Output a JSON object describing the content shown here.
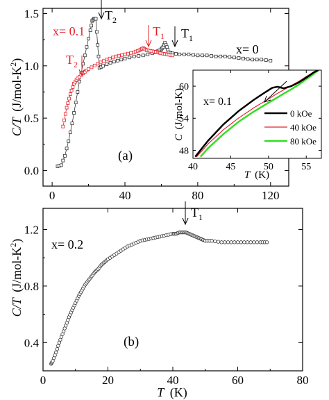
{
  "chart_data": [
    {
      "panel_label": "(a)",
      "type": "scatter",
      "xlabel": "T",
      "xunit": "(K)",
      "ylabel": "C/T",
      "yunit": "(J/mol-K",
      "yunit_sup": "2",
      "yunit_close": ")",
      "xlim": [
        -5,
        130
      ],
      "ylim": [
        -0.15,
        1.55
      ],
      "xticks": [
        "0",
        "40",
        "80",
        "120"
      ],
      "xtick_values": [
        0,
        40,
        80,
        120
      ],
      "yticks": [
        "0.0",
        "0.5",
        "1.0",
        "1.5"
      ],
      "ytick_values": [
        0.0,
        0.5,
        1.0,
        1.5
      ],
      "annotations": {
        "x01": {
          "text": "x= 0.1",
          "color": "#e8202a"
        },
        "x0": {
          "text": "x= 0"
        },
        "T2_black": {
          "main": "T",
          "sub": "2",
          "x": 23
        },
        "T1_black": {
          "main": "T",
          "sub": "1",
          "x": 63
        },
        "T2_red": {
          "main": "T",
          "sub": "2",
          "x": 13
        },
        "T1_red": {
          "main": "T",
          "sub": "1",
          "x": 50
        }
      },
      "series": [
        {
          "name": "x= 0",
          "color": "#333333",
          "marker": "open-square",
          "points": [
            [
              3,
              0.04
            ],
            [
              5,
              0.05
            ],
            [
              7,
              0.14
            ],
            [
              9,
              0.28
            ],
            [
              11,
              0.45
            ],
            [
              13,
              0.65
            ],
            [
              15,
              0.85
            ],
            [
              17,
              1.02
            ],
            [
              19,
              1.18
            ],
            [
              21,
              1.34
            ],
            [
              22,
              1.43
            ],
            [
              23,
              1.45
            ],
            [
              24,
              1.45
            ],
            [
              25,
              1.2
            ],
            [
              26,
              0.98
            ],
            [
              28,
              1.0
            ],
            [
              32,
              1.03
            ],
            [
              36,
              1.05
            ],
            [
              40,
              1.07
            ],
            [
              45,
              1.09
            ],
            [
              50,
              1.1
            ],
            [
              55,
              1.12
            ],
            [
              58,
              1.14
            ],
            [
              60,
              1.16
            ],
            [
              61,
              1.18
            ],
            [
              62,
              1.22
            ],
            [
              63,
              1.18
            ],
            [
              64,
              1.13
            ],
            [
              66,
              1.12
            ],
            [
              70,
              1.11
            ],
            [
              75,
              1.11
            ],
            [
              80,
              1.1
            ],
            [
              85,
              1.1
            ],
            [
              90,
              1.09
            ],
            [
              95,
              1.09
            ],
            [
              100,
              1.08
            ],
            [
              105,
              1.07
            ],
            [
              110,
              1.06
            ],
            [
              115,
              1.06
            ],
            [
              120,
              1.05
            ]
          ]
        },
        {
          "name": "x= 0.1",
          "color": "#e8202a",
          "marker": "open-square",
          "points": [
            [
              6,
              0.42
            ],
            [
              8,
              0.6
            ],
            [
              10,
              0.73
            ],
            [
              12,
              0.83
            ],
            [
              14,
              0.88
            ],
            [
              17,
              0.93
            ],
            [
              20,
              0.97
            ],
            [
              25,
              1.02
            ],
            [
              30,
              1.06
            ],
            [
              35,
              1.09
            ],
            [
              40,
              1.11
            ],
            [
              45,
              1.13
            ],
            [
              48,
              1.15
            ],
            [
              50,
              1.17
            ],
            [
              52,
              1.15
            ],
            [
              55,
              1.14
            ],
            [
              58,
              1.13
            ],
            [
              60,
              1.12
            ],
            [
              63,
              1.11
            ],
            [
              66,
              1.1
            ]
          ]
        }
      ],
      "inset": {
        "type": "line",
        "xlabel": "T",
        "xunit": "(K)",
        "ylabel": "C",
        "yunit": "(J/mol-K)",
        "xlim": [
          40,
          57
        ],
        "ylim": [
          46.5,
          63
        ],
        "xticks": [
          "40",
          "45",
          "50",
          "55"
        ],
        "xtick_values": [
          40,
          45,
          50,
          55
        ],
        "yticks": [
          "48",
          "54",
          "60"
        ],
        "ytick_values": [
          48,
          54,
          60
        ],
        "label": "x= 0.1",
        "legend_position": "bottom-right",
        "series": [
          {
            "name": "0 kOe",
            "color": "#000000",
            "width": 2.5,
            "points": [
              [
                40.3,
                46.8
              ],
              [
                42,
                49.8
              ],
              [
                44,
                52.8
              ],
              [
                46,
                55.3
              ],
              [
                48,
                57.4
              ],
              [
                49.5,
                58.8
              ],
              [
                50.5,
                59.7
              ],
              [
                51.2,
                59.9
              ],
              [
                52,
                59.6
              ],
              [
                53,
                60.0
              ],
              [
                54,
                60.7
              ],
              [
                55,
                61.6
              ],
              [
                56,
                62.6
              ],
              [
                56.6,
                63.0
              ]
            ]
          },
          {
            "name": "40 kOe",
            "color": "#e8202a",
            "width": 1.2,
            "points": [
              [
                40.5,
                46.8
              ],
              [
                42,
                49.2
              ],
              [
                44,
                51.8
              ],
              [
                46,
                54.0
              ],
              [
                48,
                55.9
              ],
              [
                50,
                57.6
              ],
              [
                51,
                58.5
              ],
              [
                52,
                59.3
              ],
              [
                53,
                60.1
              ],
              [
                54,
                60.9
              ],
              [
                55,
                61.8
              ],
              [
                56,
                62.6
              ],
              [
                56.6,
                63.0
              ]
            ]
          },
          {
            "name": "80 kOe",
            "color": "#33dd22",
            "width": 2.5,
            "points": [
              [
                41,
                46.8
              ],
              [
                42,
                48.4
              ],
              [
                44,
                51.0
              ],
              [
                46,
                53.3
              ],
              [
                48,
                55.2
              ],
              [
                50,
                56.9
              ],
              [
                52,
                58.6
              ],
              [
                53,
                59.4
              ],
              [
                54,
                60.3
              ],
              [
                55,
                61.3
              ],
              [
                56,
                62.3
              ],
              [
                56.6,
                63.0
              ]
            ]
          }
        ]
      }
    },
    {
      "panel_label": "(b)",
      "type": "scatter",
      "xlabel": "T",
      "xunit": "(K)",
      "ylabel": "C/T",
      "yunit": "(J/mol-K",
      "yunit_sup": "2",
      "yunit_close": ")",
      "xlim": [
        0,
        80
      ],
      "ylim": [
        0.2,
        1.35
      ],
      "xticks": [
        "0",
        "20",
        "40",
        "60",
        "80"
      ],
      "xtick_values": [
        0,
        20,
        40,
        60,
        80
      ],
      "yticks": [
        "0.4",
        "0.8",
        "1.2"
      ],
      "ytick_values": [
        0.4,
        0.8,
        1.2
      ],
      "annotations": {
        "x02": {
          "text": "x= 0.2"
        },
        "T1": {
          "main": "T",
          "sub": "1",
          "x": 44
        }
      },
      "series": [
        {
          "name": "x= 0.2",
          "color": "#333333",
          "marker": "open-circle",
          "points": [
            [
              2.5,
              0.25
            ],
            [
              3,
              0.27
            ],
            [
              4,
              0.33
            ],
            [
              5,
              0.4
            ],
            [
              6,
              0.46
            ],
            [
              7,
              0.52
            ],
            [
              8,
              0.58
            ],
            [
              9,
              0.63
            ],
            [
              10,
              0.68
            ],
            [
              11,
              0.73
            ],
            [
              12,
              0.77
            ],
            [
              13,
              0.81
            ],
            [
              14,
              0.84
            ],
            [
              15,
              0.87
            ],
            [
              16,
              0.9
            ],
            [
              17,
              0.92
            ],
            [
              18,
              0.95
            ],
            [
              19,
              0.97
            ],
            [
              20,
              0.99
            ],
            [
              22,
              1.02
            ],
            [
              24,
              1.05
            ],
            [
              26,
              1.08
            ],
            [
              28,
              1.1
            ],
            [
              30,
              1.12
            ],
            [
              32,
              1.13
            ],
            [
              34,
              1.14
            ],
            [
              36,
              1.15
            ],
            [
              38,
              1.16
            ],
            [
              40,
              1.17
            ],
            [
              41,
              1.17
            ],
            [
              42,
              1.18
            ],
            [
              43,
              1.18
            ],
            [
              44,
              1.18
            ],
            [
              45,
              1.17
            ],
            [
              46,
              1.16
            ],
            [
              47,
              1.15
            ],
            [
              48,
              1.14
            ],
            [
              49,
              1.13
            ],
            [
              50,
              1.12
            ],
            [
              52,
              1.12
            ],
            [
              55,
              1.11
            ],
            [
              58,
              1.11
            ],
            [
              61,
              1.11
            ],
            [
              64,
              1.11
            ],
            [
              67,
              1.11
            ],
            [
              69,
              1.11
            ]
          ]
        }
      ]
    }
  ]
}
